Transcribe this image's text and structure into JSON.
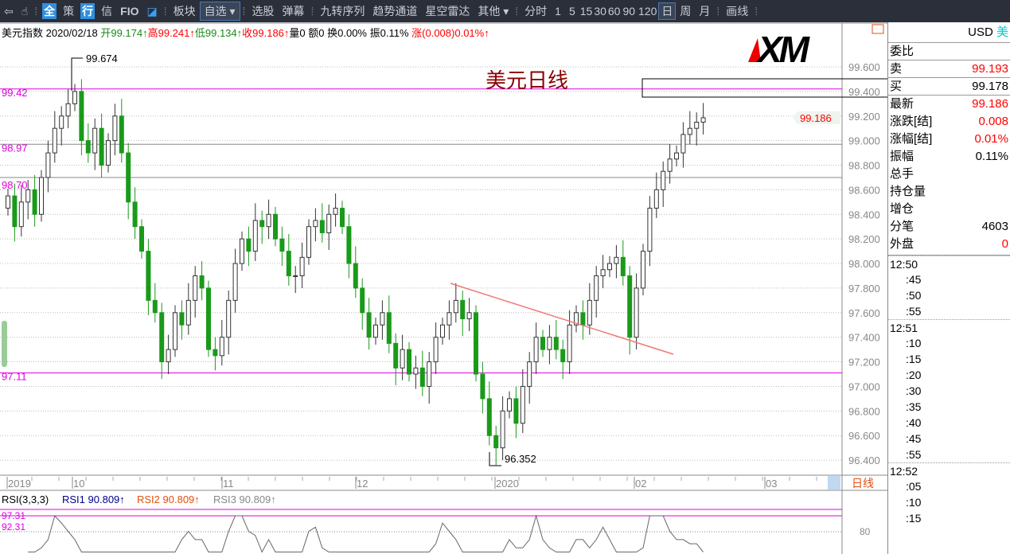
{
  "toolbar": {
    "items": [
      "板块",
      "选股",
      "弹幕",
      "九转序列",
      "趋势通道",
      "星空雷达",
      "分时",
      "1",
      "5",
      "15",
      "30",
      "60",
      "90",
      "120",
      "日",
      "周",
      "月",
      "画线"
    ],
    "badges": [
      "全",
      "策",
      "行",
      "信",
      "FIO"
    ],
    "dropdown1": "自选",
    "dropdown2": "其他",
    "active_period": "日"
  },
  "info": {
    "name": "美元指数",
    "date": "2020/02/18",
    "open": "开99.174↑",
    "high": "高99.241↑",
    "low": "低99.134↑",
    "close": "收99.186↑",
    "vol": "量0",
    "amt": "额0",
    "turn": "换0.00%",
    "amp": "振0.11%",
    "chg": "涨(0.008)0.01%↑"
  },
  "chart": {
    "title": "美元日线",
    "logo": "XM",
    "high_label": "99.674",
    "low_label": "96.352",
    "last_price": "99.186",
    "hlines": [
      {
        "label": "99.42",
        "value": 99.42,
        "color": "#e000e0"
      },
      {
        "label": "98.97",
        "value": 98.97,
        "color": "#888888"
      },
      {
        "label": "98.70",
        "value": 98.7,
        "color": "#888888"
      },
      {
        "label": "97.11",
        "value": 97.11,
        "color": "#e000e0"
      }
    ],
    "period_label": "日线"
  },
  "chart_data": {
    "type": "candlestick",
    "ylim": [
      96.3,
      99.75
    ],
    "yticks": [
      "99.600",
      "99.400",
      "99.200",
      "99.000",
      "98.800",
      "98.600",
      "98.400",
      "98.200",
      "98.000",
      "97.800",
      "97.600",
      "97.400",
      "97.200",
      "97.000",
      "96.800",
      "96.600",
      "96.400"
    ],
    "xticks": [
      "2019",
      "10",
      "11",
      "12",
      "2020",
      "02",
      "03"
    ],
    "close": [
      98.55,
      98.3,
      98.5,
      98.6,
      98.4,
      98.7,
      98.9,
      99.1,
      99.2,
      99.3,
      99.4,
      99.0,
      98.9,
      99.1,
      98.8,
      99.0,
      99.2,
      98.9,
      98.5,
      98.3,
      98.1,
      97.7,
      97.6,
      97.2,
      97.3,
      97.6,
      97.5,
      97.7,
      97.9,
      97.8,
      97.3,
      97.25,
      97.4,
      97.7,
      98.0,
      98.2,
      98.1,
      98.35,
      98.3,
      98.4,
      98.2,
      98.1,
      97.9,
      97.9,
      98.05,
      98.3,
      98.35,
      98.25,
      98.4,
      98.45,
      98.3,
      98.0,
      97.8,
      97.6,
      97.4,
      97.5,
      97.6,
      97.35,
      97.15,
      97.3,
      97.1,
      97.15,
      97.0,
      97.2,
      97.4,
      97.5,
      97.6,
      97.7,
      97.55,
      97.6,
      97.1,
      96.9,
      96.6,
      96.5,
      96.8,
      96.9,
      96.7,
      97.0,
      97.2,
      97.4,
      97.3,
      97.4,
      97.3,
      97.2,
      97.5,
      97.6,
      97.5,
      97.7,
      97.9,
      97.95,
      98.0,
      98.05,
      97.9,
      97.4,
      97.8,
      98.1,
      98.45,
      98.6,
      98.75,
      98.85,
      98.9,
      99.05,
      99.1,
      99.15,
      99.186
    ],
    "up_color": "#333333",
    "down_color": "#1a9a1a",
    "trendline_color": "#f07878"
  },
  "rsi": {
    "title": "RSI(3,3,3)",
    "rsi1": "RSI1 90.809↑",
    "rsi2": "RSI2 90.809↑",
    "rsi3": "RSI3 90.809↑",
    "level_a": "97.31",
    "level_b": "92.31",
    "axis": "80"
  },
  "panel": {
    "currency": "USD",
    "currency_cn": "美",
    "weibi": "委比",
    "rows": [
      {
        "label": "卖",
        "value": "99.193",
        "color": "#f00"
      },
      {
        "label": "买",
        "value": "99.178",
        "color": "#000"
      }
    ],
    "stats": [
      {
        "label": "最新",
        "value": "99.186",
        "color": "#f00"
      },
      {
        "label": "涨跌[结]",
        "value": "0.008",
        "color": "#f00"
      },
      {
        "label": "涨幅[结]",
        "value": "0.01%",
        "color": "#f00"
      },
      {
        "label": "振幅",
        "value": "0.11%",
        "color": "#000"
      },
      {
        "label": "总手",
        "value": "",
        "color": "#000"
      },
      {
        "label": "持仓量",
        "value": "",
        "color": "#000"
      },
      {
        "label": "增仓",
        "value": "",
        "color": "#000"
      },
      {
        "label": "分笔",
        "value": "4603",
        "color": "#000"
      },
      {
        "label": "外盘",
        "value": "0",
        "color": "#f00"
      }
    ],
    "times": [
      "12:50",
      ":45",
      ":50",
      ":55",
      "12:51",
      ":10",
      ":15",
      ":20",
      ":30",
      ":35",
      ":40",
      ":45",
      ":55",
      "12:52",
      ":05",
      ":10",
      ":15"
    ]
  }
}
